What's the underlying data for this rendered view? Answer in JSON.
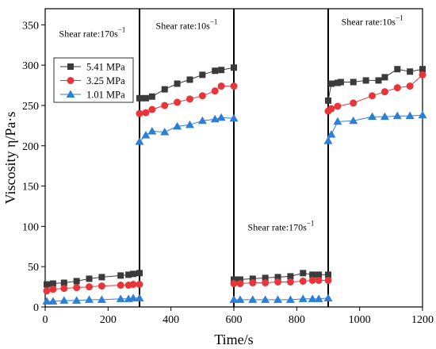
{
  "chart_data": {
    "type": "line",
    "xlabel": "Time/s",
    "ylabel": "Viscosity η/Pa·s",
    "xlim": [
      0,
      1200
    ],
    "ylim": [
      0,
      370
    ],
    "xticks": [
      0,
      200,
      400,
      600,
      800,
      1000,
      1200
    ],
    "yticks": [
      0,
      50,
      100,
      150,
      200,
      250,
      300,
      350
    ],
    "grid": false,
    "legend_position": "upper-left",
    "phase_boundaries": [
      300,
      600,
      900
    ],
    "annotations": [
      {
        "base": "Shear rate:170s",
        "sup": "−1",
        "x": 150,
        "y": 335
      },
      {
        "base": "Shear rate:10s",
        "sup": "−1",
        "x": 450,
        "y": 345
      },
      {
        "base": "Shear rate:170s",
        "sup": "−1",
        "x": 750,
        "y": 95
      },
      {
        "base": "Shear rate:10s",
        "sup": "−1",
        "x": 1040,
        "y": 350
      }
    ],
    "series": [
      {
        "name": "5.41 MPa",
        "color": "#3a3a3a",
        "marker": "square",
        "segments": [
          [
            [
              5,
              28
            ],
            [
              25,
              29
            ],
            [
              60,
              30
            ],
            [
              100,
              32
            ],
            [
              140,
              35
            ],
            [
              180,
              37
            ],
            [
              240,
              39
            ],
            [
              265,
              40
            ],
            [
              280,
              41
            ],
            [
              300,
              42
            ]
          ],
          [
            [
              300,
              259
            ],
            [
              320,
              259
            ],
            [
              340,
              261
            ],
            [
              380,
              270
            ],
            [
              420,
              277
            ],
            [
              460,
              282
            ],
            [
              500,
              288
            ],
            [
              540,
              293
            ],
            [
              560,
              294
            ],
            [
              600,
              297
            ]
          ],
          [
            [
              600,
              34
            ],
            [
              620,
              34
            ],
            [
              660,
              35
            ],
            [
              700,
              36
            ],
            [
              740,
              37
            ],
            [
              780,
              38
            ],
            [
              820,
              42
            ],
            [
              850,
              40
            ],
            [
              870,
              40
            ],
            [
              900,
              40
            ]
          ],
          [
            [
              900,
              256
            ],
            [
              910,
              277
            ],
            [
              930,
              278
            ],
            [
              940,
              279
            ],
            [
              980,
              279
            ],
            [
              1020,
              281
            ],
            [
              1060,
              281
            ],
            [
              1080,
              285
            ],
            [
              1120,
              295
            ],
            [
              1160,
              292
            ],
            [
              1200,
              295
            ]
          ]
        ]
      },
      {
        "name": "3.25 MPa",
        "color": "#e8353a",
        "marker": "circle",
        "segments": [
          [
            [
              5,
              20
            ],
            [
              25,
              22
            ],
            [
              60,
              23
            ],
            [
              100,
              24
            ],
            [
              140,
              25
            ],
            [
              180,
              26
            ],
            [
              240,
              27
            ],
            [
              265,
              27
            ],
            [
              280,
              28
            ],
            [
              300,
              28
            ]
          ],
          [
            [
              300,
              240
            ],
            [
              320,
              241
            ],
            [
              340,
              245
            ],
            [
              380,
              250
            ],
            [
              420,
              254
            ],
            [
              460,
              258
            ],
            [
              500,
              262
            ],
            [
              540,
              268
            ],
            [
              560,
              274
            ],
            [
              600,
              274
            ]
          ],
          [
            [
              600,
              29
            ],
            [
              620,
              29
            ],
            [
              660,
              30
            ],
            [
              700,
              30
            ],
            [
              740,
              31
            ],
            [
              780,
              31
            ],
            [
              820,
              32
            ],
            [
              850,
              33
            ],
            [
              870,
              33
            ],
            [
              900,
              33
            ]
          ],
          [
            [
              900,
              243
            ],
            [
              910,
              246
            ],
            [
              930,
              249
            ],
            [
              980,
              253
            ],
            [
              1040,
              262
            ],
            [
              1080,
              267
            ],
            [
              1120,
              272
            ],
            [
              1160,
              274
            ],
            [
              1200,
              288
            ]
          ]
        ]
      },
      {
        "name": "1.01 MPa",
        "color": "#2c7fd6",
        "marker": "triangle",
        "segments": [
          [
            [
              5,
              7
            ],
            [
              25,
              7
            ],
            [
              60,
              8
            ],
            [
              100,
              8
            ],
            [
              140,
              9
            ],
            [
              180,
              9
            ],
            [
              240,
              10
            ],
            [
              265,
              10
            ],
            [
              280,
              11
            ],
            [
              300,
              11
            ]
          ],
          [
            [
              300,
              205
            ],
            [
              320,
              213
            ],
            [
              340,
              218
            ],
            [
              380,
              217
            ],
            [
              420,
              224
            ],
            [
              460,
              226
            ],
            [
              500,
              231
            ],
            [
              540,
              233
            ],
            [
              560,
              235
            ],
            [
              600,
              234
            ]
          ],
          [
            [
              600,
              9
            ],
            [
              620,
              9
            ],
            [
              660,
              9
            ],
            [
              700,
              9
            ],
            [
              740,
              9
            ],
            [
              780,
              9
            ],
            [
              820,
              10
            ],
            [
              850,
              10
            ],
            [
              870,
              10
            ],
            [
              900,
              11
            ]
          ],
          [
            [
              900,
              206
            ],
            [
              910,
              214
            ],
            [
              930,
              230
            ],
            [
              980,
              231
            ],
            [
              1040,
              236
            ],
            [
              1080,
              236
            ],
            [
              1120,
              237
            ],
            [
              1160,
              237
            ],
            [
              1200,
              238
            ]
          ]
        ]
      }
    ]
  }
}
